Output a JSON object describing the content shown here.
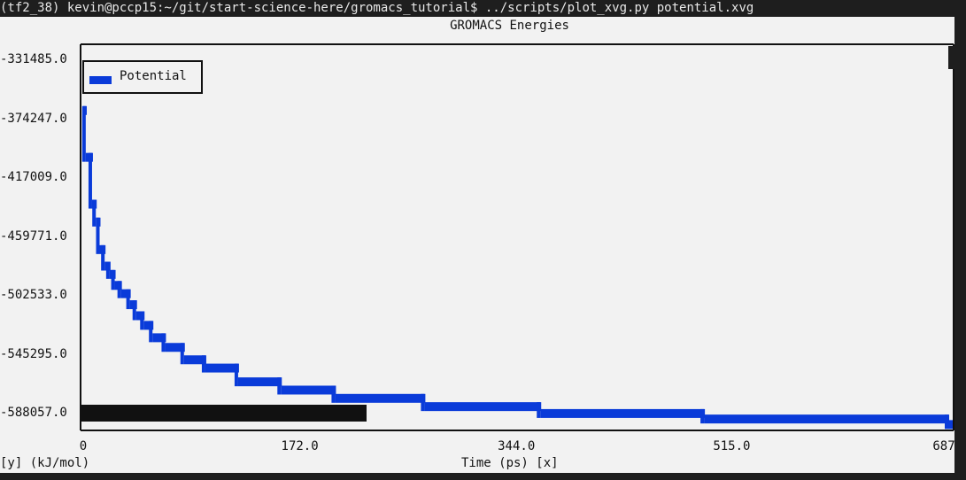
{
  "terminal": {
    "command_line": "(tf2_38) kevin@pccp15:~/git/start-science-here/gromacs_tutorial$ ../scripts/plot_xvg.py potential.xvg"
  },
  "colors": {
    "series": "#0a3bd9",
    "background": "#f2f2f2",
    "terminal_bg": "#1e1e1e",
    "black_bar": "#111111"
  },
  "chart_data": {
    "type": "line",
    "title": "GROMACS Energies",
    "xlabel": "Time (ps) [x]",
    "ylabel": "[y] (kJ/mol)",
    "xticks": [
      "0",
      "172.0",
      "344.0",
      "515.0",
      "687"
    ],
    "yticks": [
      "-331485.0",
      "-374247.0",
      "-417009.0",
      "-459771.0",
      "-502533.0",
      "-545295.0",
      "-588057.0"
    ],
    "xlim": [
      0,
      687
    ],
    "ylim": [
      -588057,
      -331485
    ],
    "legend_location": "top-left",
    "series": [
      {
        "name": "Potential",
        "x": [
          0,
          2,
          7,
          10,
          13,
          17,
          21,
          25,
          30,
          37,
          42,
          48,
          55,
          65,
          80,
          97,
          123,
          157,
          200,
          271,
          363,
          493,
          687
        ],
        "y": [
          -368000,
          -402000,
          -436000,
          -449000,
          -469000,
          -481000,
          -487000,
          -495000,
          -501000,
          -509000,
          -517000,
          -524000,
          -533000,
          -540000,
          -549000,
          -555000,
          -565000,
          -571000,
          -577000,
          -583000,
          -588000,
          -592000,
          -596000
        ]
      }
    ]
  }
}
